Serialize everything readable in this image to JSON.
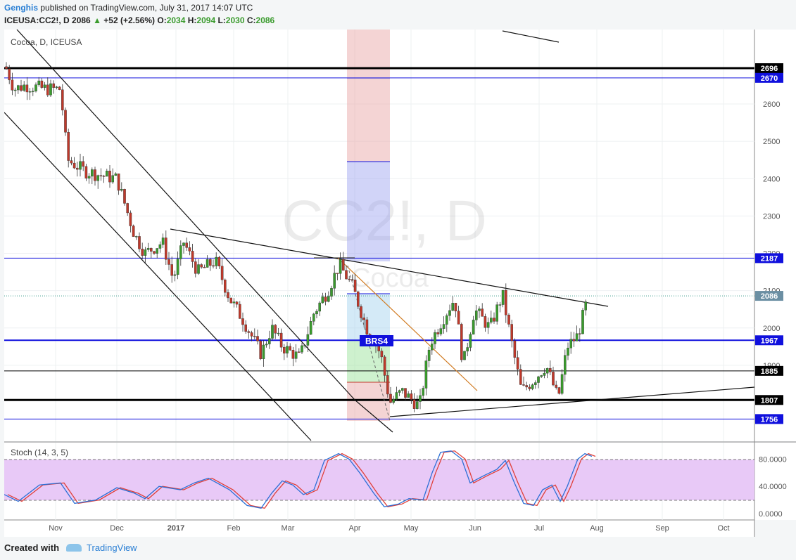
{
  "header": {
    "author": "Genghis",
    "published_text": "published on TradingView.com, July 31, 2017 14:07 UTC",
    "symbol_line": "ICEUSA:CC2!, D",
    "last": "2086",
    "change": "+52 (+2.56%)",
    "o_label": "O:",
    "o_val": "2034",
    "h_label": "H:",
    "h_val": "2094",
    "l_label": "L:",
    "l_val": "2030",
    "c_label": "C:",
    "c_val": "2086"
  },
  "footer": {
    "created": "Created with",
    "brand": "TradingView"
  },
  "colors": {
    "up": "#3a9b2d",
    "down": "#c0392b",
    "blue_level": "#1010dd",
    "stoch_k": "#2b6fd6",
    "stoch_d": "#e0403a",
    "stoch_band": "#e8c9f7"
  },
  "chart_data": {
    "type": "candlestick",
    "title": "Cocoa, D, ICEUSA",
    "watermark": "CC2!, D",
    "watermark_sub": "Cocoa",
    "x_ticks": [
      "Nov",
      "Dec",
      "2017",
      "Feb",
      "Mar",
      "Apr",
      "May",
      "Jun",
      "Jul",
      "Aug",
      "Sep",
      "Oct"
    ],
    "y_ticks": [
      2600,
      2500,
      2400,
      2300,
      2200,
      2100,
      2000,
      1900
    ],
    "y_range": [
      1700,
      2760
    ],
    "price_levels": [
      {
        "value": 2696,
        "label": "2696",
        "style": "black-thick"
      },
      {
        "value": 2670,
        "label": "2670",
        "style": "blue"
      },
      {
        "value": 2187,
        "label": "2187",
        "style": "blue"
      },
      {
        "value": 2086,
        "label": "2086",
        "style": "last"
      },
      {
        "value": 1967,
        "label": "1967",
        "style": "blue-thick"
      },
      {
        "value": 1885,
        "label": "1885",
        "style": "black"
      },
      {
        "value": 1807,
        "label": "1807",
        "style": "black-thick"
      },
      {
        "value": 1756,
        "label": "1756",
        "style": "blue"
      }
    ],
    "annotation": "BRS4",
    "last_close": 2086,
    "ohlc_sample": [
      {
        "date": "2016-10",
        "open": 2700,
        "high": 2730,
        "low": 2590,
        "close": 2620
      },
      {
        "date": "2016-11",
        "open": 2620,
        "high": 2680,
        "low": 2400,
        "close": 2450
      },
      {
        "date": "2016-12",
        "open": 2450,
        "high": 2460,
        "low": 2150,
        "close": 2220
      },
      {
        "date": "2017-01",
        "open": 2220,
        "high": 2300,
        "low": 2100,
        "close": 2200
      },
      {
        "date": "2017-02",
        "open": 2200,
        "high": 2230,
        "low": 1890,
        "close": 1980
      },
      {
        "date": "2017-03",
        "open": 1980,
        "high": 2190,
        "low": 1880,
        "close": 2150
      },
      {
        "date": "2017-04",
        "open": 2150,
        "high": 2180,
        "low": 1770,
        "close": 1810
      },
      {
        "date": "2017-05",
        "open": 1810,
        "high": 2100,
        "low": 1770,
        "close": 2070
      },
      {
        "date": "2017-06",
        "open": 2070,
        "high": 2110,
        "low": 1820,
        "close": 1860
      },
      {
        "date": "2017-07",
        "open": 1860,
        "high": 2094,
        "low": 1800,
        "close": 2086
      }
    ],
    "stoch": {
      "label": "Stoch (14, 3, 5)",
      "y_ticks": [
        "80.0000",
        "40.0000",
        "0.0000"
      ],
      "band": [
        20,
        80
      ]
    }
  }
}
